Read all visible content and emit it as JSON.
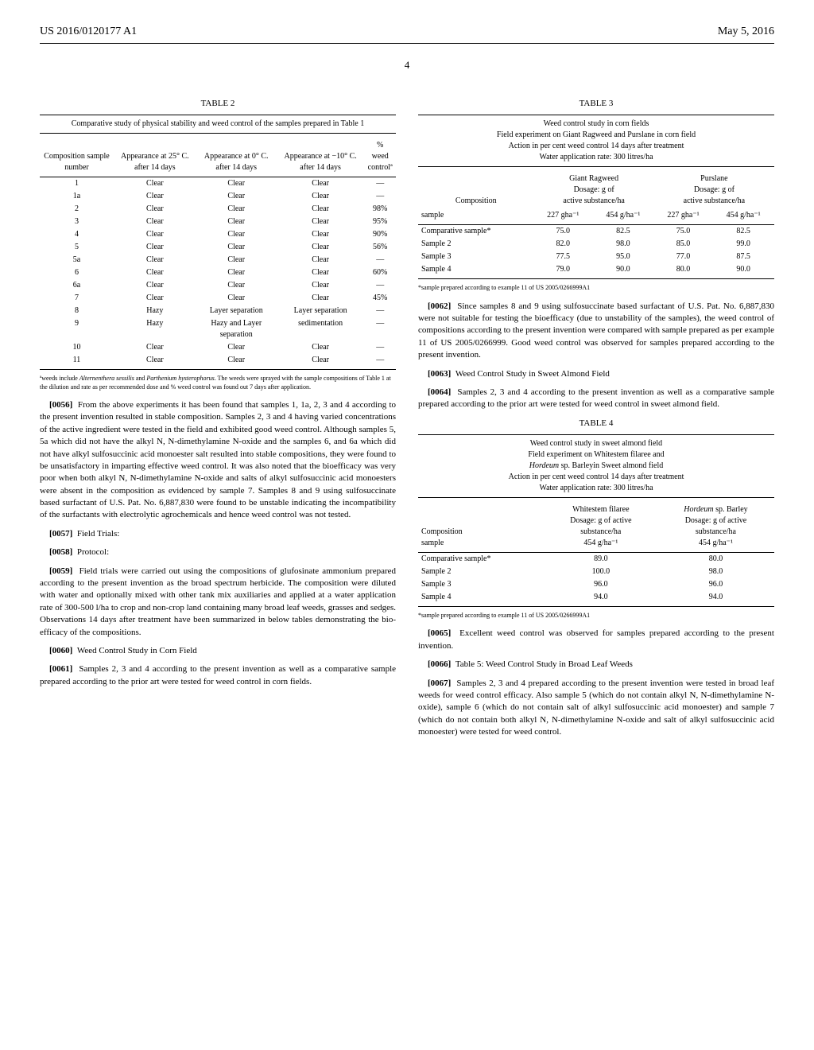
{
  "header": {
    "pub_number": "US 2016/0120177 A1",
    "pub_date": "May 5, 2016"
  },
  "page_number": "4",
  "table2": {
    "label": "TABLE 2",
    "caption": "Comparative study of physical stability and weed control of the samples prepared in Table 1",
    "headers": {
      "col1": "Composition sample number",
      "col2": "Appearance at 25° C. after 14 days",
      "col3": "Appearance at 0° C. after 14 days",
      "col4": "Appearance at −10° C. after 14 days",
      "col5_a": "% weed",
      "col5_b": "controlª"
    },
    "rows": [
      {
        "n": "1",
        "a": "Clear",
        "b": "Clear",
        "c": "Clear",
        "d": "—"
      },
      {
        "n": "1a",
        "a": "Clear",
        "b": "Clear",
        "c": "Clear",
        "d": "—"
      },
      {
        "n": "2",
        "a": "Clear",
        "b": "Clear",
        "c": "Clear",
        "d": "98%"
      },
      {
        "n": "3",
        "a": "Clear",
        "b": "Clear",
        "c": "Clear",
        "d": "95%"
      },
      {
        "n": "4",
        "a": "Clear",
        "b": "Clear",
        "c": "Clear",
        "d": "90%"
      },
      {
        "n": "5",
        "a": "Clear",
        "b": "Clear",
        "c": "Clear",
        "d": "56%"
      },
      {
        "n": "5a",
        "a": "Clear",
        "b": "Clear",
        "c": "Clear",
        "d": "—"
      },
      {
        "n": "6",
        "a": "Clear",
        "b": "Clear",
        "c": "Clear",
        "d": "60%"
      },
      {
        "n": "6a",
        "a": "Clear",
        "b": "Clear",
        "c": "Clear",
        "d": "—"
      },
      {
        "n": "7",
        "a": "Clear",
        "b": "Clear",
        "c": "Clear",
        "d": "45%"
      },
      {
        "n": "8",
        "a": "Hazy",
        "b": "Layer separation",
        "c": "Layer separation",
        "d": "—"
      },
      {
        "n": "9",
        "a": "Hazy",
        "b": "Hazy and Layer separation",
        "c": "sedimentation",
        "d": "—"
      },
      {
        "n": "10",
        "a": "Clear",
        "b": "Clear",
        "c": "Clear",
        "d": "—"
      },
      {
        "n": "11",
        "a": "Clear",
        "b": "Clear",
        "c": "Clear",
        "d": "—"
      }
    ],
    "footnote_a": "ªweeds include ",
    "footnote_b": "Alternenthera sessilis",
    "footnote_c": " and ",
    "footnote_d": "Parthenium hysterophorus",
    "footnote_e": ". The weeds were sprayed with the sample compositions of Table 1 at the dilution and rate as per recommended dose and % weed control was found out 7 days after application."
  },
  "paragraphs": {
    "p0056_num": "[0056]",
    "p0056": "From the above experiments it has been found that samples 1, 1a, 2, 3 and 4 according to the present invention resulted in stable composition. Samples 2, 3 and 4 having varied concentrations of the active ingredient were tested in the field and exhibited good weed control. Although samples 5, 5a which did not have the alkyl N, N-dimethylamine N-oxide and the samples 6, and 6a which did not have alkyl sulfosuccinic acid monoester salt resulted into stable compositions, they were found to be unsatisfactory in imparting effective weed control. It was also noted that the bioefficacy was very poor when both alkyl N, N-dimethylamine N-oxide and salts of alkyl sulfosuccinic acid monoesters were absent in the composition as evidenced by sample 7. Samples 8 and 9 using sulfosuccinate based surfactant of U.S. Pat. No. 6,887,830 were found to be unstable indicating the incompatibility of the surfactants with electrolytic agrochemicals and hence weed control was not tested.",
    "p0057_num": "[0057]",
    "p0057": "Field Trials:",
    "p0058_num": "[0058]",
    "p0058": "Protocol:",
    "p0059_num": "[0059]",
    "p0059": "Field trials were carried out using the compositions of glufosinate ammonium prepared according to the present invention as the broad spectrum herbicide. The composition were diluted with water and optionally mixed with other tank mix auxiliaries and applied at a water application rate of 300-500 l/ha to crop and non-crop land containing many broad leaf weeds, grasses and sedges. Observations 14 days after treatment have been summarized in below tables demonstrating the bio-efficacy of the compositions.",
    "p0060_num": "[0060]",
    "p0060": "Weed Control Study in Corn Field",
    "p0061_num": "[0061]",
    "p0061": "Samples 2, 3 and 4 according to the present invention as well as a comparative sample prepared according to the prior art were tested for weed control in corn fields.",
    "p0062_num": "[0062]",
    "p0062": "Since samples 8 and 9 using sulfosuccinate based surfactant of U.S. Pat. No. 6,887,830 were not suitable for testing the bioefficacy (due to unstability of the samples), the weed control of compositions according to the present invention were compared with sample prepared as per example 11 of US 2005/0266999. Good weed control was observed for samples prepared according to the present invention.",
    "p0063_num": "[0063]",
    "p0063": "Weed Control Study in Sweet Almond Field",
    "p0064_num": "[0064]",
    "p0064": "Samples 2, 3 and 4 according to the present invention as well as a comparative sample prepared according to the prior art were tested for weed control in sweet almond field.",
    "p0065_num": "[0065]",
    "p0065": "Excellent weed control was observed for samples prepared according to the present invention.",
    "p0066_num": "[0066]",
    "p0066": "Table 5: Weed Control Study in Broad Leaf Weeds",
    "p0067_num": "[0067]",
    "p0067": "Samples 2, 3 and 4 prepared according to the present invention were tested in broad leaf weeds for weed control efficacy. Also sample 5 (which do not contain alkyl N, N-dimethylamine N-oxide), sample 6 (which do not contain salt of alkyl sulfosuccinic acid monoester) and sample 7 (which do not contain both alkyl N, N-dimethylamine N-oxide and salt of alkyl sulfosuccinic acid monoester) were tested for weed control."
  },
  "table3": {
    "label": "TABLE 3",
    "caption_l1": "Weed control study in corn fields",
    "caption_l2": "Field experiment on Giant Ragweed and Purslane in corn field",
    "caption_l3": "Action in per cent weed control 14 days after treatment",
    "caption_l4": "Water application rate: 300 litres/ha",
    "hdr_comp": "Composition",
    "hdr_ragweed_l1": "Giant Ragweed",
    "hdr_ragweed_l2": "Dosage: g of",
    "hdr_ragweed_l3": "active substance/ha",
    "hdr_purslane_l1": "Purslane",
    "hdr_purslane_l2": "Dosage: g of",
    "hdr_purslane_l3": "active substance/ha",
    "hdr_sample": "sample",
    "hdr_227a": "227 gha⁻¹",
    "hdr_454a": "454 g/ha⁻¹",
    "hdr_227b": "227 gha⁻¹",
    "hdr_454b": "454 g/ha⁻¹",
    "rows": [
      {
        "s": "Comparative sample*",
        "a": "75.0",
        "b": "82.5",
        "c": "75.0",
        "d": "82.5"
      },
      {
        "s": "Sample 2",
        "a": "82.0",
        "b": "98.0",
        "c": "85.0",
        "d": "99.0"
      },
      {
        "s": "Sample 3",
        "a": "77.5",
        "b": "95.0",
        "c": "77.0",
        "d": "87.5"
      },
      {
        "s": "Sample 4",
        "a": "79.0",
        "b": "90.0",
        "c": "80.0",
        "d": "90.0"
      }
    ],
    "footnote": "*sample prepared according to example 11 of US 2005/0266999A1"
  },
  "table4": {
    "label": "TABLE 4",
    "caption_l1": "Weed control study in sweet almond field",
    "caption_l2": "Field experiment on Whitestem filaree and",
    "caption_l3_a": "Hordeum",
    "caption_l3_b": " sp. Barleyin Sweet almond field",
    "caption_l4": "Action in per cent weed control 14 days after treatment",
    "caption_l5": "Water application rate: 300 litres/ha",
    "hdr_comp_l1": "Composition",
    "hdr_comp_l2": "sample",
    "hdr_wf_l1": "Whitestem filaree",
    "hdr_wf_l2": "Dosage: g of active",
    "hdr_wf_l3": "substance/ha",
    "hdr_wf_l4": "454 g/ha⁻¹",
    "hdr_hb_l1a": "Hordeum",
    "hdr_hb_l1b": " sp. Barley",
    "hdr_hb_l2": "Dosage: g of active",
    "hdr_hb_l3": "substance/ha",
    "hdr_hb_l4": "454 g/ha⁻¹",
    "rows": [
      {
        "s": "Comparative sample*",
        "a": "89.0",
        "b": "80.0"
      },
      {
        "s": "Sample 2",
        "a": "100.0",
        "b": "98.0"
      },
      {
        "s": "Sample 3",
        "a": "96.0",
        "b": "96.0"
      },
      {
        "s": "Sample 4",
        "a": "94.0",
        "b": "94.0"
      }
    ],
    "footnote": "*sample prepared according to example 11 of US 2005/0266999A1"
  }
}
